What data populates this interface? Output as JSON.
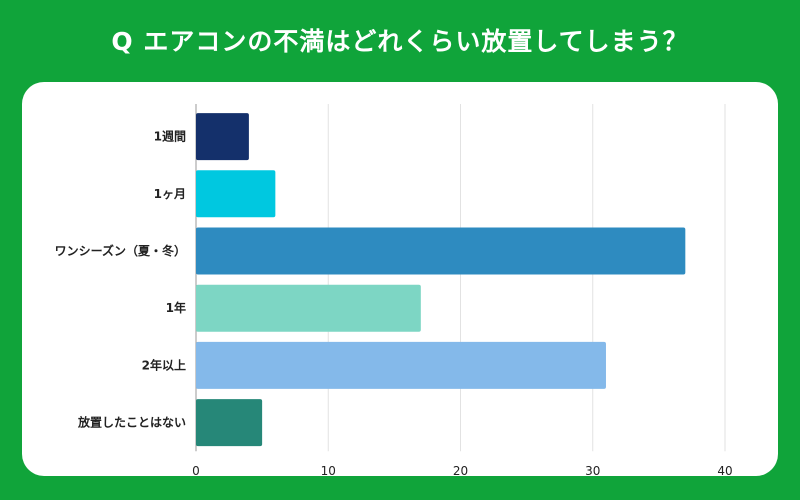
{
  "title": "Q エアコンの不満はどれくらい放置してしまう？",
  "chart_data": {
    "type": "bar",
    "orientation": "horizontal",
    "title": "",
    "xlabel": "",
    "ylabel": "",
    "categories": [
      "1週間",
      "1ヶ月",
      "ワンシーズン（夏・冬）",
      "1年",
      "2年以上",
      "放置したことはない"
    ],
    "values": [
      4,
      6,
      37,
      17,
      31,
      5
    ],
    "colors": [
      "#14306b",
      "#00c8e0",
      "#2e8bc0",
      "#7dd6c4",
      "#84b9ea",
      "#268778"
    ],
    "xlim": [
      0,
      40
    ],
    "xticks": [
      0,
      10,
      20,
      30,
      40
    ],
    "grid": true,
    "legend": "none"
  },
  "colors": {
    "background": "#10a43a",
    "card": "#ffffff"
  }
}
